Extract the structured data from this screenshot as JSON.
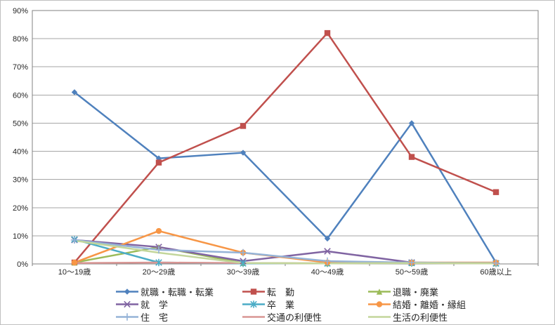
{
  "chart_data": {
    "type": "line",
    "title": "",
    "xlabel": "",
    "ylabel": "",
    "ylim": [
      0,
      90
    ],
    "ytick_step": 10,
    "ytick_labels": [
      "0%",
      "10%",
      "20%",
      "30%",
      "40%",
      "50%",
      "60%",
      "70%",
      "80%",
      "90%"
    ],
    "grid": true,
    "legend_position": "bottom",
    "categories": [
      "10〜19歳",
      "20〜29歳",
      "30〜39歳",
      "40〜49歳",
      "50〜59歳",
      "60歳以上"
    ],
    "series": [
      {
        "name": "就職・転職・転業",
        "label": "就職・転職・転業",
        "color": "#4F81BD",
        "marker": "diamond",
        "values": [
          61,
          37.5,
          39.5,
          9,
          50,
          0.5
        ]
      },
      {
        "name": "転勤",
        "label": "転　勤",
        "color": "#C0504D",
        "marker": "square",
        "values": [
          0.5,
          36,
          49,
          82,
          38,
          25.5
        ]
      },
      {
        "name": "退職・廃業",
        "label": "退職・廃業",
        "color": "#9BBB59",
        "marker": "triangle",
        "values": [
          0.5,
          6,
          0.3,
          0.2,
          0.3,
          0.2
        ]
      },
      {
        "name": "就学",
        "label": "就　学",
        "color": "#8064A2",
        "marker": "x",
        "values": [
          8.5,
          6,
          1,
          4.5,
          0.5,
          0.2
        ]
      },
      {
        "name": "卒業",
        "label": "卒　業",
        "color": "#4BACC6",
        "marker": "asterisk",
        "values": [
          8.7,
          0.5,
          0.2,
          0.2,
          0.3,
          0.2
        ]
      },
      {
        "name": "結婚・離婚・縁組",
        "label": "結婚・離婚・縁組",
        "color": "#F79646",
        "marker": "circle",
        "values": [
          0.5,
          11.7,
          4,
          0.5,
          0.5,
          0.5
        ]
      },
      {
        "name": "住宅",
        "label": "住　宅",
        "color": "#95B3D7",
        "marker": "plus",
        "values": [
          8.5,
          5,
          4,
          1,
          0.5,
          0.3
        ]
      },
      {
        "name": "交通の利便性",
        "label": "交通の利便性",
        "color": "#D99694",
        "marker": "none",
        "values": [
          0.3,
          0.5,
          0.3,
          0.2,
          0.3,
          0.2
        ]
      },
      {
        "name": "生活の利便性",
        "label": "生活の利便性",
        "color": "#C3D69B",
        "marker": "none",
        "values": [
          8.3,
          4,
          0.3,
          0.2,
          0.3,
          0.2
        ]
      }
    ]
  },
  "style": {
    "grid_color": "#A6A6A6",
    "axis_color": "#808080",
    "text_color": "#262626",
    "background": "#FFFFFF"
  }
}
